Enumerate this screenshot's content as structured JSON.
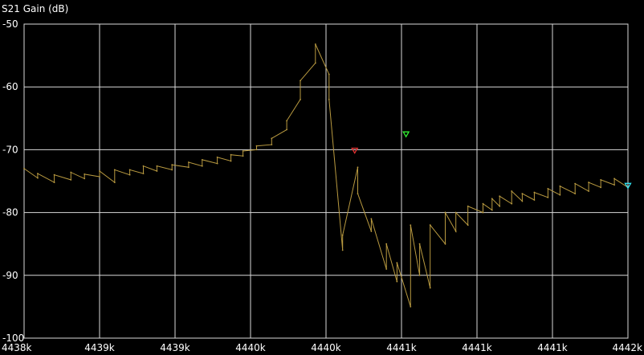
{
  "chart_data": {
    "type": "line",
    "title": "S21 Gain (dB)",
    "xlabel": "",
    "ylabel": "",
    "xlim": [
      4438000,
      4442000
    ],
    "ylim": [
      -100,
      -50
    ],
    "x_ticks": [
      4438000,
      4438500,
      4439000,
      4439500,
      4440000,
      4440500,
      4441000,
      4441500,
      4442000
    ],
    "x_tick_labels": [
      "4438k",
      "4439k",
      "4439k",
      "4440k",
      "4440k",
      "4441k",
      "4441k",
      "4441k",
      "4442k"
    ],
    "y_ticks": [
      -50,
      -60,
      -70,
      -80,
      -90,
      -100
    ],
    "y_tick_labels": [
      "-50",
      "-60",
      "-70",
      "-80",
      "-90",
      "-100"
    ],
    "grid": true,
    "colors": {
      "background": "#000000",
      "grid": "#d8d8d8",
      "trace": "#b99a40"
    },
    "series": [
      {
        "color": "#b99a40",
        "x": [
          4438000,
          4438090,
          4438090,
          4438200,
          4438200,
          4438310,
          4438310,
          4438400,
          4438400,
          4438500,
          4438500,
          4438600,
          4438600,
          4438700,
          4438700,
          4438790,
          4438790,
          4438880,
          4438880,
          4438980,
          4438980,
          4439090,
          4439090,
          4439180,
          4439180,
          4439280,
          4439280,
          4439370,
          4439370,
          4439450,
          4439450,
          4439540,
          4439540,
          4439640,
          4439640,
          4439740,
          4439740,
          4439830,
          4439830,
          4439930,
          4439930,
          4440020,
          4440020,
          4440110,
          4440110,
          4440210,
          4440210,
          4440300,
          4440300,
          4440400,
          4440400,
          4440470,
          4440470,
          4440560,
          4440560,
          4440620,
          4440620,
          4440690,
          4440690,
          4440790,
          4440790,
          4440860,
          4440860,
          4440940,
          4440940,
          4441040,
          4441040,
          4441100,
          4441100,
          4441150,
          4441150,
          4441230,
          4441230,
          4441300,
          4441300,
          4441380,
          4441380,
          4441470,
          4441470,
          4441550,
          4441550,
          4441650,
          4441650,
          4441740,
          4441740,
          4441820,
          4441820,
          4441910,
          4441910,
          4442000
        ],
        "y": [
          -73.0,
          -74.5,
          -73.8,
          -75.2,
          -74.0,
          -74.8,
          -73.6,
          -74.6,
          -73.9,
          -74.3,
          -73.4,
          -75.2,
          -73.2,
          -74.0,
          -73.2,
          -73.8,
          -72.6,
          -73.4,
          -72.6,
          -73.2,
          -72.4,
          -72.8,
          -72.0,
          -72.6,
          -71.6,
          -72.2,
          -71.2,
          -71.8,
          -70.8,
          -71.0,
          -70.2,
          -70.0,
          -69.4,
          -69.2,
          -68.2,
          -66.8,
          -65.4,
          -62.0,
          -59.0,
          -56.2,
          -53.2,
          -58.0,
          -62.0,
          -86.0,
          -83.6,
          -72.8,
          -77.0,
          -83.0,
          -81.0,
          -89.0,
          -85.0,
          -91.0,
          -88.0,
          -95.0,
          -82.0,
          -90.0,
          -85.0,
          -92.0,
          -82.0,
          -85.0,
          -80.0,
          -83.0,
          -80.0,
          -82.0,
          -79.0,
          -80.0,
          -78.6,
          -79.6,
          -77.8,
          -79.0,
          -77.4,
          -78.6,
          -76.6,
          -78.2,
          -77.0,
          -78.0,
          -76.8,
          -77.6,
          -76.2,
          -77.2,
          -75.8,
          -77.0,
          -75.4,
          -76.6,
          -75.2,
          -76.0,
          -74.8,
          -75.6,
          -74.6,
          -76.0
        ]
      }
    ],
    "markers": [
      {
        "x": 4440190,
        "y": -70.4,
        "color": "#e03030",
        "shape": "triangle-down"
      },
      {
        "x": 4440530,
        "y": -67.8,
        "color": "#33ee33",
        "shape": "triangle-down"
      },
      {
        "x": 4442000,
        "y": -76.0,
        "color": "#33e0ee",
        "shape": "triangle-down"
      }
    ]
  }
}
